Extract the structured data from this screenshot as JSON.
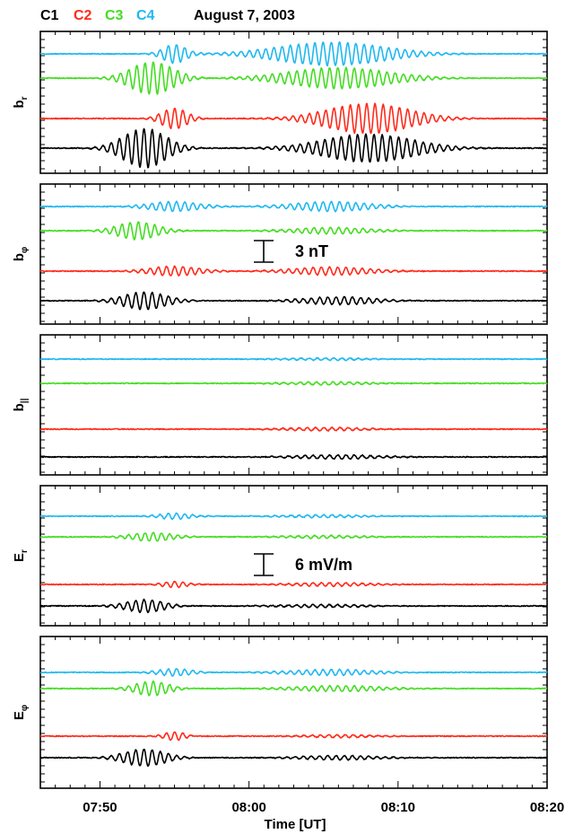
{
  "header": {
    "probes": [
      {
        "label": "C1",
        "color": "#000000"
      },
      {
        "label": "C2",
        "color": "#ff2a1a"
      },
      {
        "label": "C3",
        "color": "#44dd22"
      },
      {
        "label": "C4",
        "color": "#1fb8f0"
      }
    ],
    "date": "August 7, 2003"
  },
  "chart_data": {
    "type": "line",
    "xlabel": "Time [UT]",
    "xlim": [
      "07:46",
      "08:20"
    ],
    "xticks": [
      "07:50",
      "08:00",
      "08:10",
      "08:20"
    ],
    "series_order_bottom_to_top": [
      "C1",
      "C2",
      "C3",
      "C4"
    ],
    "panels": [
      {
        "id": "br",
        "label": "b",
        "subscript": "r",
        "wave_packets": [
          {
            "series": "C4",
            "events": [
              {
                "center": "07:55:00",
                "halfwidth_min": 1.4,
                "amplitude_nT": 0.8
              },
              {
                "center": "08:05:30",
                "halfwidth_min": 6.5,
                "amplitude_nT": 1.0
              }
            ]
          },
          {
            "series": "C3",
            "events": [
              {
                "center": "07:53:30",
                "halfwidth_min": 2.6,
                "amplitude_nT": 1.4
              },
              {
                "center": "08:06:00",
                "halfwidth_min": 6.0,
                "amplitude_nT": 0.9
              }
            ]
          },
          {
            "series": "C2",
            "events": [
              {
                "center": "07:55:00",
                "halfwidth_min": 1.5,
                "amplitude_nT": 0.9
              },
              {
                "center": "08:08:00",
                "halfwidth_min": 5.0,
                "amplitude_nT": 1.3
              }
            ]
          },
          {
            "series": "C1",
            "events": [
              {
                "center": "07:53:00",
                "halfwidth_min": 2.6,
                "amplitude_nT": 1.7
              },
              {
                "center": "08:08:00",
                "halfwidth_min": 5.5,
                "amplitude_nT": 1.2
              }
            ]
          }
        ]
      },
      {
        "id": "bphi",
        "label": "b",
        "subscript": "φ",
        "wave_packets": [
          {
            "series": "C4",
            "events": [
              {
                "center": "07:55:00",
                "halfwidth_min": 3.0,
                "amplitude_nT": 0.6
              },
              {
                "center": "08:05:30",
                "halfwidth_min": 4.5,
                "amplitude_nT": 0.6
              }
            ]
          },
          {
            "series": "C3",
            "events": [
              {
                "center": "07:52:30",
                "halfwidth_min": 2.4,
                "amplitude_nT": 1.1
              },
              {
                "center": "08:05:30",
                "halfwidth_min": 4.5,
                "amplitude_nT": 0.4
              }
            ]
          },
          {
            "series": "C2",
            "events": [
              {
                "center": "07:55:00",
                "halfwidth_min": 3.0,
                "amplitude_nT": 0.6
              },
              {
                "center": "08:05:30",
                "halfwidth_min": 4.5,
                "amplitude_nT": 0.5
              }
            ]
          },
          {
            "series": "C1",
            "events": [
              {
                "center": "07:53:00",
                "halfwidth_min": 2.6,
                "amplitude_nT": 1.1
              },
              {
                "center": "08:06:00",
                "halfwidth_min": 4.0,
                "amplitude_nT": 0.5
              }
            ]
          }
        ],
        "scale_bar": {
          "text": "3 nT"
        }
      },
      {
        "id": "bpar",
        "label": "b",
        "subscript": "||",
        "wave_packets": [
          {
            "series": "C4",
            "events": [
              {
                "center": "08:05:00",
                "halfwidth_min": 4.5,
                "amplitude_nT": 0.15
              }
            ]
          },
          {
            "series": "C3",
            "events": [
              {
                "center": "08:05:00",
                "halfwidth_min": 4.5,
                "amplitude_nT": 0.2
              }
            ]
          },
          {
            "series": "C2",
            "events": [
              {
                "center": "08:05:00",
                "halfwidth_min": 4.5,
                "amplitude_nT": 0.2
              }
            ]
          },
          {
            "series": "C1",
            "events": [
              {
                "center": "08:06:00",
                "halfwidth_min": 5.0,
                "amplitude_nT": 0.25
              }
            ]
          }
        ]
      },
      {
        "id": "Er",
        "label": "E",
        "subscript": "r",
        "wave_packets": [
          {
            "series": "C4",
            "events": [
              {
                "center": "07:55:00",
                "halfwidth_min": 2.0,
                "amplitude_mVm": 0.8
              },
              {
                "center": "08:05:00",
                "halfwidth_min": 4.5,
                "amplitude_mVm": 0.4
              }
            ]
          },
          {
            "series": "C3",
            "events": [
              {
                "center": "07:53:30",
                "halfwidth_min": 2.5,
                "amplitude_mVm": 1.2
              },
              {
                "center": "08:05:00",
                "halfwidth_min": 4.5,
                "amplitude_mVm": 0.4
              }
            ]
          },
          {
            "series": "C2",
            "events": [
              {
                "center": "07:55:00",
                "halfwidth_min": 1.5,
                "amplitude_mVm": 0.8
              },
              {
                "center": "08:05:30",
                "halfwidth_min": 4.5,
                "amplitude_mVm": 0.5
              }
            ]
          },
          {
            "series": "C1",
            "events": [
              {
                "center": "07:53:00",
                "halfwidth_min": 2.3,
                "amplitude_mVm": 1.8
              },
              {
                "center": "08:05:00",
                "halfwidth_min": 5.0,
                "amplitude_mVm": 0.4
              }
            ]
          }
        ],
        "scale_bar": {
          "text": "6 mV/m"
        }
      },
      {
        "id": "Ephi",
        "label": "E",
        "subscript": "φ",
        "wave_packets": [
          {
            "series": "C4",
            "events": [
              {
                "center": "07:55:00",
                "halfwidth_min": 2.0,
                "amplitude_mVm": 1.0
              },
              {
                "center": "08:05:30",
                "halfwidth_min": 5.0,
                "amplitude_mVm": 0.8
              }
            ]
          },
          {
            "series": "C3",
            "events": [
              {
                "center": "07:53:30",
                "halfwidth_min": 2.0,
                "amplitude_mVm": 2.0
              },
              {
                "center": "08:06:00",
                "halfwidth_min": 5.0,
                "amplitude_mVm": 0.8
              }
            ]
          },
          {
            "series": "C2",
            "events": [
              {
                "center": "07:55:00",
                "halfwidth_min": 1.2,
                "amplitude_mVm": 1.2
              },
              {
                "center": "08:06:00",
                "halfwidth_min": 4.0,
                "amplitude_mVm": 0.4
              }
            ]
          },
          {
            "series": "C1",
            "events": [
              {
                "center": "07:53:00",
                "halfwidth_min": 2.5,
                "amplitude_mVm": 2.4
              },
              {
                "center": "08:06:00",
                "halfwidth_min": 4.5,
                "amplitude_mVm": 0.6
              }
            ]
          }
        ]
      }
    ]
  }
}
